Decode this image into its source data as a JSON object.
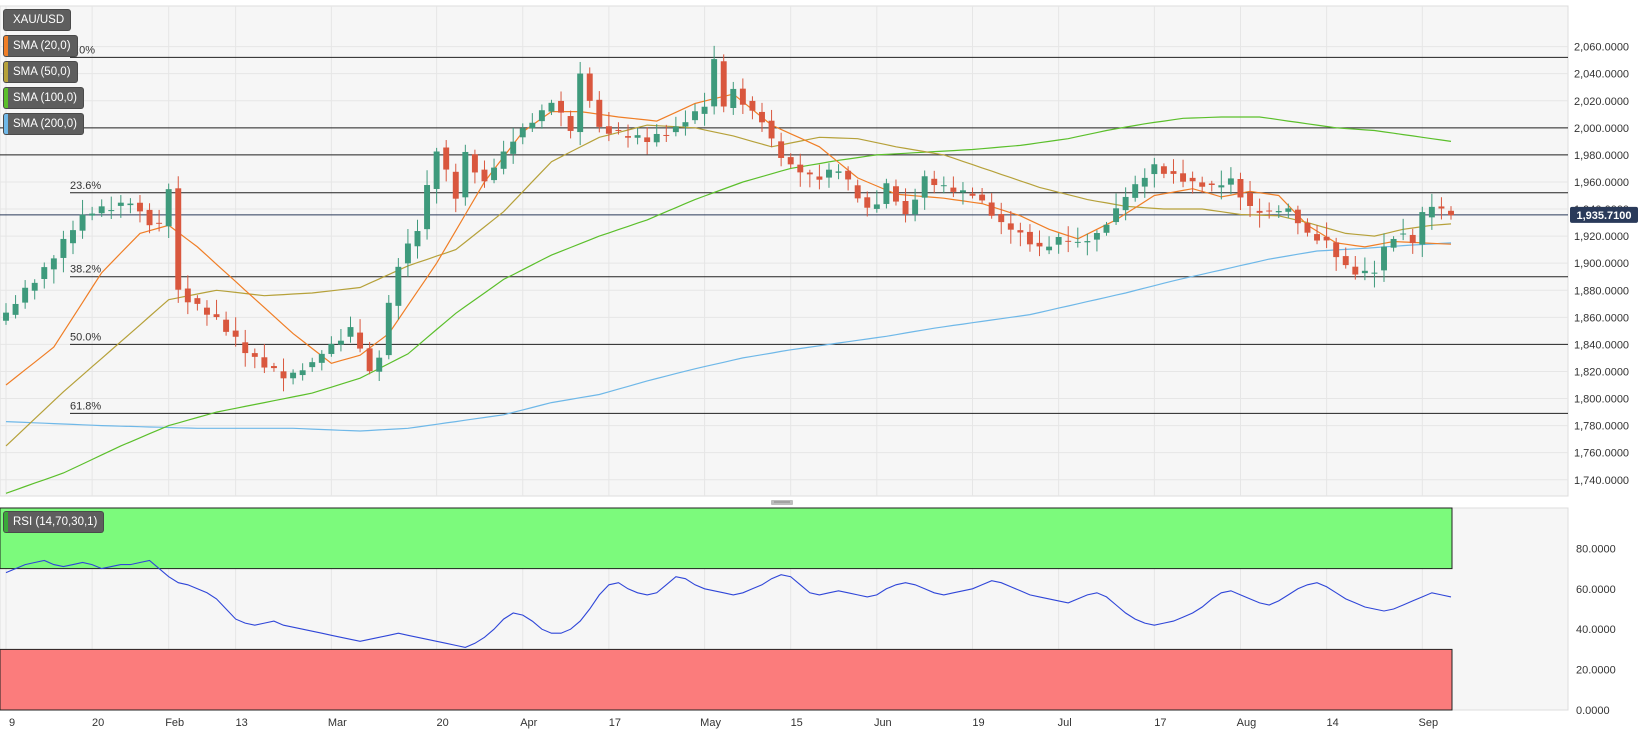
{
  "chart_data": {
    "type": "candlestick",
    "symbol": "XAU/USD",
    "current_price_label": "1,935.7100",
    "colors": {
      "up": "#3e9a7c",
      "down": "#d9573e",
      "sma20": "#f07e26",
      "sma50": "#b6a13a",
      "sma100": "#5bbf2b",
      "sma200": "#6fb8e8",
      "rsi": "#2f46d8",
      "rsi_overbought_zone": "#7cfa7c",
      "rsi_oversold_zone": "#fb7c7c"
    },
    "legend": [
      {
        "label": "XAU/USD",
        "color": "#5e5e5e"
      },
      {
        "label": "SMA (20,0)",
        "color": "#f07e26"
      },
      {
        "label": "SMA (50,0)",
        "color": "#b6a13a"
      },
      {
        "label": "SMA (100,0)",
        "color": "#5bbf2b"
      },
      {
        "label": "SMA (200,0)",
        "color": "#6fb8e8"
      }
    ],
    "y_ticks": [
      "2,060.0000",
      "2,040.0000",
      "2,020.0000",
      "2,000.0000",
      "1,980.0000",
      "1,960.0000",
      "1,940.0000",
      "1,920.0000",
      "1,900.0000",
      "1,880.0000",
      "1,860.0000",
      "1,840.0000",
      "1,820.0000",
      "1,800.0000",
      "1,780.0000",
      "1,760.0000",
      "1,740.0000"
    ],
    "y_tick_values": [
      2060,
      2040,
      2020,
      2000,
      1980,
      1960,
      1940,
      1920,
      1900,
      1880,
      1860,
      1840,
      1820,
      1800,
      1780,
      1760,
      1740
    ],
    "ylim": [
      1728,
      2090
    ],
    "x_tick_labels": [
      "9",
      "20",
      "Feb",
      "13",
      "Mar",
      "20",
      "Apr",
      "17",
      "May",
      "15",
      "Jun",
      "19",
      "Jul",
      "17",
      "Aug",
      "14",
      "Sep"
    ],
    "x_tick_index": [
      0,
      9,
      17,
      24,
      34,
      45,
      54,
      63,
      73,
      82,
      91,
      101,
      110,
      120,
      129,
      138,
      148
    ],
    "n_bars": 152,
    "fibonacci": [
      {
        "label": "0.0%",
        "value": 2052
      },
      {
        "label": "23.6%",
        "value": 1952
      },
      {
        "label": "38.2%",
        "value": 1890
      },
      {
        "label": "50.0%",
        "value": 1840
      },
      {
        "label": "61.8%",
        "value": 1789
      }
    ],
    "horizontal_levels": [
      2000,
      1980,
      1935.71
    ],
    "close_anchors": [
      [
        0,
        1862
      ],
      [
        5,
        1905
      ],
      [
        8,
        1935
      ],
      [
        11,
        1942
      ],
      [
        13,
        1946
      ],
      [
        15,
        1930
      ],
      [
        16,
        1928
      ],
      [
        17,
        1956
      ],
      [
        18,
        1880
      ],
      [
        20,
        1868
      ],
      [
        22,
        1858
      ],
      [
        25,
        1835
      ],
      [
        29,
        1815
      ],
      [
        32,
        1826
      ],
      [
        34,
        1840
      ],
      [
        36,
        1850
      ],
      [
        37,
        1838
      ],
      [
        38,
        1820
      ],
      [
        39,
        1832
      ],
      [
        40,
        1868
      ],
      [
        41,
        1900
      ],
      [
        43,
        1925
      ],
      [
        45,
        1985
      ],
      [
        47,
        1950
      ],
      [
        48,
        1980
      ],
      [
        50,
        1960
      ],
      [
        53,
        1992
      ],
      [
        55,
        2005
      ],
      [
        57,
        2020
      ],
      [
        59,
        1998
      ],
      [
        60,
        2040
      ],
      [
        62,
        2000
      ],
      [
        64,
        1995
      ],
      [
        67,
        1990
      ],
      [
        70,
        2000
      ],
      [
        73,
        2016
      ],
      [
        74,
        2048
      ],
      [
        75,
        2016
      ],
      [
        76,
        2028
      ],
      [
        77,
        2020
      ],
      [
        79,
        2005
      ],
      [
        81,
        1978
      ],
      [
        84,
        1963
      ],
      [
        87,
        1968
      ],
      [
        89,
        1950
      ],
      [
        90,
        1940
      ],
      [
        91,
        1945
      ],
      [
        92,
        1958
      ],
      [
        94,
        1935
      ],
      [
        96,
        1962
      ],
      [
        98,
        1955
      ],
      [
        101,
        1950
      ],
      [
        102,
        1945
      ],
      [
        104,
        1928
      ],
      [
        106,
        1922
      ],
      [
        108,
        1910
      ],
      [
        110,
        1918
      ],
      [
        112,
        1915
      ],
      [
        114,
        1922
      ],
      [
        116,
        1940
      ],
      [
        118,
        1958
      ],
      [
        120,
        1971
      ],
      [
        122,
        1965
      ],
      [
        124,
        1960
      ],
      [
        126,
        1955
      ],
      [
        128,
        1962
      ],
      [
        130,
        1940
      ],
      [
        132,
        1938
      ],
      [
        134,
        1940
      ],
      [
        136,
        1922
      ],
      [
        138,
        1915
      ],
      [
        139,
        1906
      ],
      [
        140,
        1897
      ],
      [
        141,
        1892
      ],
      [
        142,
        1892
      ],
      [
        143,
        1895
      ],
      [
        144,
        1910
      ],
      [
        145,
        1920
      ],
      [
        146,
        1920
      ],
      [
        147,
        1915
      ],
      [
        148,
        1935
      ],
      [
        149,
        1942
      ],
      [
        150,
        1938
      ],
      [
        151,
        1935.71
      ]
    ],
    "sma20_anchors": [
      [
        0,
        1810
      ],
      [
        5,
        1838
      ],
      [
        10,
        1893
      ],
      [
        14,
        1922
      ],
      [
        17,
        1928
      ],
      [
        20,
        1912
      ],
      [
        25,
        1880
      ],
      [
        30,
        1848
      ],
      [
        34,
        1826
      ],
      [
        37,
        1832
      ],
      [
        40,
        1848
      ],
      [
        45,
        1900
      ],
      [
        50,
        1960
      ],
      [
        54,
        1997
      ],
      [
        57,
        2012
      ],
      [
        60,
        2012
      ],
      [
        64,
        2008
      ],
      [
        68,
        2005
      ],
      [
        72,
        2018
      ],
      [
        76,
        2025
      ],
      [
        80,
        2002
      ],
      [
        85,
        1986
      ],
      [
        89,
        1963
      ],
      [
        93,
        1951
      ],
      [
        98,
        1948
      ],
      [
        102,
        1944
      ],
      [
        106,
        1935
      ],
      [
        109,
        1925
      ],
      [
        112,
        1918
      ],
      [
        116,
        1932
      ],
      [
        120,
        1950
      ],
      [
        124,
        1955
      ],
      [
        127,
        1949
      ],
      [
        130,
        1953
      ],
      [
        133,
        1950
      ],
      [
        136,
        1928
      ],
      [
        139,
        1915
      ],
      [
        142,
        1912
      ],
      [
        145,
        1916
      ],
      [
        148,
        1915
      ],
      [
        151,
        1914
      ]
    ],
    "sma50_anchors": [
      [
        0,
        1765
      ],
      [
        6,
        1805
      ],
      [
        12,
        1842
      ],
      [
        17,
        1873
      ],
      [
        22,
        1880
      ],
      [
        27,
        1876
      ],
      [
        32,
        1878
      ],
      [
        37,
        1882
      ],
      [
        42,
        1898
      ],
      [
        47,
        1910
      ],
      [
        52,
        1938
      ],
      [
        57,
        1975
      ],
      [
        62,
        1993
      ],
      [
        67,
        2002
      ],
      [
        72,
        2000
      ],
      [
        76,
        1994
      ],
      [
        80,
        1986
      ],
      [
        85,
        1993
      ],
      [
        89,
        1992
      ],
      [
        93,
        1986
      ],
      [
        98,
        1980
      ],
      [
        103,
        1968
      ],
      [
        108,
        1956
      ],
      [
        113,
        1947
      ],
      [
        117,
        1942
      ],
      [
        121,
        1940
      ],
      [
        125,
        1940
      ],
      [
        129,
        1936
      ],
      [
        133,
        1935
      ],
      [
        136,
        1930
      ],
      [
        140,
        1922
      ],
      [
        143,
        1920
      ],
      [
        146,
        1925
      ],
      [
        149,
        1928
      ],
      [
        151,
        1929
      ]
    ],
    "sma100_anchors": [
      [
        0,
        1730
      ],
      [
        6,
        1745
      ],
      [
        12,
        1765
      ],
      [
        17,
        1780
      ],
      [
        22,
        1790
      ],
      [
        27,
        1797
      ],
      [
        32,
        1804
      ],
      [
        37,
        1815
      ],
      [
        42,
        1833
      ],
      [
        47,
        1863
      ],
      [
        52,
        1888
      ],
      [
        57,
        1906
      ],
      [
        62,
        1920
      ],
      [
        67,
        1932
      ],
      [
        72,
        1947
      ],
      [
        77,
        1960
      ],
      [
        82,
        1970
      ],
      [
        87,
        1976
      ],
      [
        91,
        1980
      ],
      [
        96,
        1982
      ],
      [
        101,
        1984
      ],
      [
        106,
        1987
      ],
      [
        111,
        1992
      ],
      [
        115,
        1998
      ],
      [
        119,
        2003
      ],
      [
        123,
        2007
      ],
      [
        127,
        2008
      ],
      [
        131,
        2008
      ],
      [
        135,
        2004
      ],
      [
        139,
        2000
      ],
      [
        143,
        1998
      ],
      [
        147,
        1994
      ],
      [
        151,
        1990
      ]
    ],
    "sma200_anchors": [
      [
        0,
        1783
      ],
      [
        10,
        1780
      ],
      [
        20,
        1778
      ],
      [
        30,
        1778
      ],
      [
        37,
        1776
      ],
      [
        42,
        1778
      ],
      [
        47,
        1783
      ],
      [
        52,
        1788
      ],
      [
        57,
        1797
      ],
      [
        62,
        1803
      ],
      [
        67,
        1813
      ],
      [
        72,
        1822
      ],
      [
        77,
        1830
      ],
      [
        82,
        1836
      ],
      [
        87,
        1841
      ],
      [
        92,
        1846
      ],
      [
        97,
        1852
      ],
      [
        102,
        1857
      ],
      [
        107,
        1862
      ],
      [
        112,
        1870
      ],
      [
        117,
        1878
      ],
      [
        122,
        1887
      ],
      [
        127,
        1895
      ],
      [
        132,
        1903
      ],
      [
        137,
        1909
      ],
      [
        142,
        1911
      ],
      [
        146,
        1913
      ],
      [
        151,
        1915
      ]
    ],
    "rsi": {
      "label": "RSI (14,70,30,1)",
      "overbought": 70,
      "oversold": 30,
      "ylim": [
        0,
        100
      ],
      "y_ticks": [
        "80.0000",
        "60.0000",
        "40.0000",
        "20.0000",
        "0.0000"
      ],
      "y_tick_values": [
        80,
        60,
        40,
        20,
        0
      ],
      "values": [
        68,
        70,
        72,
        73,
        74,
        72,
        71,
        72,
        73,
        72,
        70,
        71,
        72,
        72,
        73,
        74,
        70,
        66,
        63,
        62,
        60,
        58,
        55,
        50,
        45,
        43,
        42,
        43,
        44,
        42,
        41,
        40,
        39,
        38,
        37,
        36,
        35,
        34,
        35,
        36,
        37,
        38,
        37,
        36,
        35,
        34,
        33,
        32,
        31,
        33,
        36,
        40,
        45,
        48,
        47,
        44,
        40,
        38,
        38,
        40,
        44,
        50,
        57,
        62,
        63,
        60,
        58,
        57,
        58,
        62,
        66,
        65,
        62,
        60,
        59,
        58,
        57,
        58,
        60,
        62,
        65,
        67,
        66,
        62,
        58,
        57,
        58,
        59,
        58,
        57,
        56,
        57,
        60,
        62,
        63,
        62,
        60,
        58,
        57,
        58,
        59,
        60,
        62,
        64,
        63,
        61,
        59,
        57,
        56,
        55,
        54,
        53,
        55,
        57,
        58,
        56,
        52,
        48,
        45,
        43,
        42,
        43,
        44,
        46,
        48,
        51,
        55,
        58,
        59,
        57,
        55,
        53,
        52,
        54,
        57,
        60,
        62,
        63,
        61,
        58,
        55,
        53,
        51,
        50,
        49,
        50,
        52,
        54,
        56,
        58,
        57,
        56
      ]
    },
    "xlabel": "",
    "ylabel": ""
  }
}
